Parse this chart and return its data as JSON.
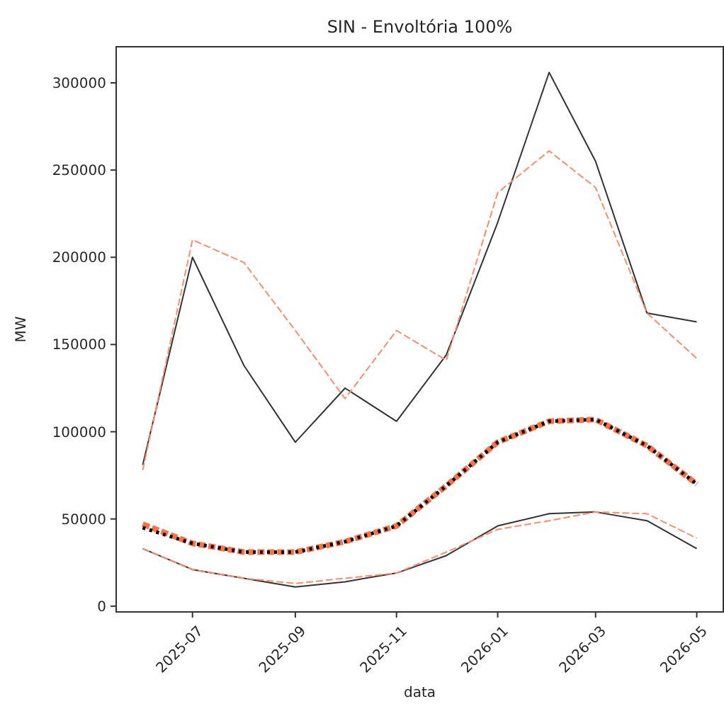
{
  "chart_data": {
    "type": "line",
    "title": "SIN - Envoltória 100%",
    "xlabel": "data",
    "ylabel": "MW",
    "x": [
      "2025-06",
      "2025-07",
      "2025-08",
      "2025-09",
      "2025-10",
      "2025-11",
      "2025-12",
      "2026-01",
      "2026-02",
      "2026-03",
      "2026-04",
      "2026-05"
    ],
    "series": [
      {
        "color": "#333333",
        "line_style": "solid",
        "values": [
          81000,
          200000,
          138000,
          94000,
          125000,
          106000,
          144000,
          220000,
          306000,
          255000,
          168000,
          163000
        ]
      },
      {
        "color": "#ff8c69",
        "line_style": "dashed",
        "values": [
          78000,
          210000,
          197000,
          158000,
          119000,
          158000,
          141000,
          237000,
          261000,
          240000,
          168000,
          142000
        ]
      },
      {
        "color": "#ff7043",
        "line_style": "dashed",
        "values": [
          47000,
          36000,
          31000,
          31000,
          37000,
          46000,
          69000,
          94000,
          106000,
          107000,
          92000,
          70000
        ]
      },
      {
        "color": "#000000",
        "line_style": "dotted",
        "values": [
          45000,
          36000,
          31000,
          31000,
          37000,
          46000,
          69000,
          94000,
          106000,
          107000,
          92000,
          70000
        ]
      },
      {
        "color": "#333333",
        "line_style": "solid",
        "values": [
          33000,
          21000,
          16000,
          11000,
          14000,
          19000,
          29000,
          46000,
          53000,
          54000,
          49000,
          33000
        ]
      },
      {
        "color": "#ff8c69",
        "line_style": "dashed",
        "values": [
          33000,
          21000,
          16000,
          13000,
          16000,
          19000,
          31000,
          44000,
          49000,
          54000,
          53000,
          39000
        ]
      }
    ],
    "xlim": [
      "2025-05-16",
      "2026-05-17"
    ],
    "xticks": [
      {
        "value": "2025-07",
        "label": "2025-07"
      },
      {
        "value": "2025-09",
        "label": "2025-09"
      },
      {
        "value": "2025-11",
        "label": "2025-11"
      },
      {
        "value": "2026-01",
        "label": "2026-01"
      },
      {
        "value": "2026-03",
        "label": "2026-03"
      },
      {
        "value": "2026-05",
        "label": "2026-05"
      }
    ],
    "ylim": [
      -3300,
      320700
    ],
    "yticks": [
      0,
      50000,
      100000,
      150000,
      200000,
      250000,
      300000
    ],
    "grid": false,
    "marker": "none"
  }
}
